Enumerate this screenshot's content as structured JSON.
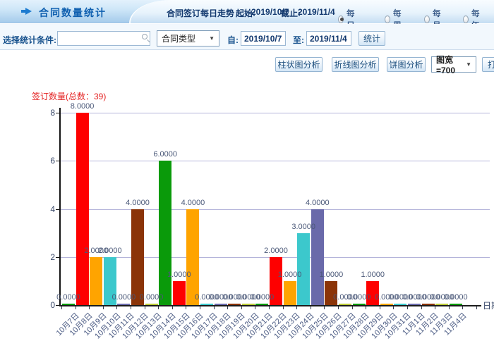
{
  "topbar": {
    "title": "合同数量统计",
    "trend_label": "合同签订每日走势",
    "start_label": "起始:",
    "start_value": "2019/10/7",
    "end_label": "截止:",
    "end_value": "2019/11/4",
    "radios": [
      {
        "label": "每日",
        "selected": true
      },
      {
        "label": "每周",
        "selected": false
      },
      {
        "label": "每月",
        "selected": false
      },
      {
        "label": "每年",
        "selected": false
      }
    ]
  },
  "filterbar": {
    "condition_label": "选择统计条件:",
    "search_value": "",
    "type_select_value": "合同类型",
    "from_label": "自:",
    "from_value": "2019/10/7",
    "to_label": "至:",
    "to_value": "2019/11/4",
    "submit_label": "统计"
  },
  "toolbar": {
    "bar_button": "柱状图分析",
    "line_button": "折线图分析",
    "pie_button": "饼图分析",
    "width_select_value": "图宽=700",
    "print_button": "打印"
  },
  "chart_data": {
    "type": "bar",
    "title": "签订数量(总数：39)",
    "xlabel": "日期",
    "ylabel": "",
    "ylim": [
      0,
      8
    ],
    "yticks": [
      0,
      2,
      4,
      6,
      8
    ],
    "grid": true,
    "gridline_color": "#b4b4da",
    "legend": "none",
    "value_label_decimals": 4,
    "bar_colors_cycle": [
      "#0a9a0a",
      "#fe0000",
      "#ffa400",
      "#3cc8cc",
      "#6a6aaa",
      "#8b3408",
      "#b9c836"
    ],
    "categories": [
      "10月7日",
      "10月8日",
      "10月9日",
      "10月10日",
      "10月11日",
      "10月12日",
      "10月13日",
      "10月14日",
      "10月15日",
      "10月16日",
      "10月17日",
      "10月18日",
      "10月19日",
      "10月20日",
      "10月21日",
      "10月22日",
      "10月23日",
      "10月24日",
      "10月25日",
      "10月26日",
      "10月27日",
      "10月28日",
      "10月29日",
      "10月30日",
      "10月31日",
      "11月1日",
      "11月2日",
      "11月3日",
      "11月4日"
    ],
    "values": [
      0,
      8,
      2,
      2,
      0,
      4,
      0,
      6,
      1,
      4,
      0,
      0,
      0,
      0,
      0,
      2,
      1,
      3,
      4,
      1,
      0,
      0,
      1,
      0,
      0,
      0,
      0,
      0,
      0
    ],
    "total": 39
  }
}
